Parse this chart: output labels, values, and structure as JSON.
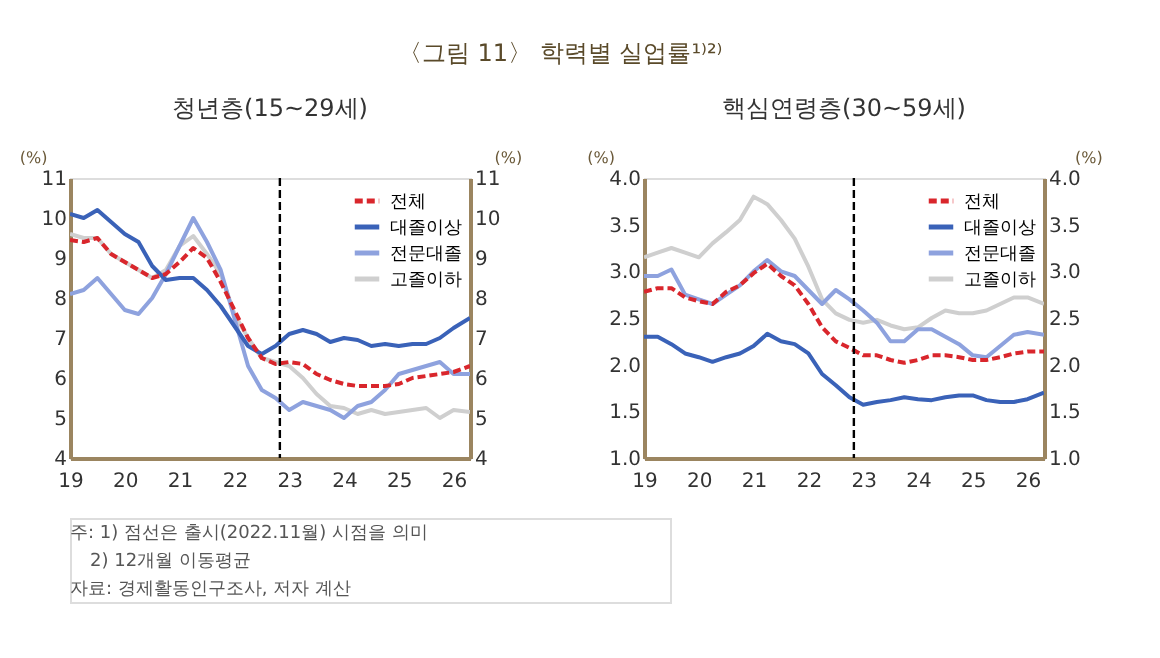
{
  "chart_data": [
    {
      "type": "line",
      "title": "〈그림 11〉 학력별 실업률¹⁾²⁾",
      "subtitle": "청년층(15~29세)",
      "ylabel": "(%)",
      "y2label": "(%)",
      "x": [
        19.0,
        19.25,
        19.5,
        19.75,
        20.0,
        20.25,
        20.5,
        20.75,
        21.0,
        21.25,
        21.5,
        21.75,
        22.0,
        22.25,
        22.5,
        22.75,
        23.0,
        23.25,
        23.5,
        23.75,
        24.0,
        24.25,
        24.5,
        24.75,
        25.0,
        25.25,
        25.5,
        25.75,
        26.0,
        26.3
      ],
      "series": [
        {
          "name": "전체",
          "color": "#d9262c",
          "line_style": "dashed",
          "values": [
            9.45,
            9.4,
            9.5,
            9.1,
            8.9,
            8.7,
            8.5,
            8.6,
            8.9,
            9.25,
            9.0,
            8.4,
            7.7,
            7.0,
            6.5,
            6.35,
            6.4,
            6.35,
            6.1,
            5.95,
            5.85,
            5.8,
            5.8,
            5.8,
            5.85,
            6.0,
            6.05,
            6.1,
            6.15,
            6.3
          ]
        },
        {
          "name": "대졸이상",
          "color": "#3a62b8",
          "values": [
            10.1,
            10.0,
            10.2,
            9.9,
            9.6,
            9.4,
            8.8,
            8.45,
            8.5,
            8.5,
            8.2,
            7.8,
            7.3,
            6.8,
            6.6,
            6.8,
            7.1,
            7.2,
            7.1,
            6.9,
            7.0,
            6.95,
            6.8,
            6.85,
            6.8,
            6.85,
            6.85,
            7.0,
            7.25,
            7.5
          ]
        },
        {
          "name": "전문대졸",
          "color": "#8ea2de",
          "values": [
            8.1,
            8.2,
            8.5,
            8.1,
            7.7,
            7.6,
            8.0,
            8.6,
            9.3,
            10.0,
            9.4,
            8.7,
            7.5,
            6.3,
            5.7,
            5.5,
            5.2,
            5.4,
            5.3,
            5.2,
            5.0,
            5.3,
            5.4,
            5.7,
            6.1,
            6.2,
            6.3,
            6.4,
            6.1,
            6.1
          ]
        },
        {
          "name": "고졸이하",
          "color": "#cfcfcf",
          "values": [
            9.6,
            9.5,
            9.5,
            9.1,
            8.9,
            8.7,
            8.5,
            8.7,
            9.3,
            9.55,
            9.1,
            8.6,
            7.6,
            7.0,
            6.5,
            6.4,
            6.3,
            6.0,
            5.6,
            5.3,
            5.25,
            5.1,
            5.2,
            5.1,
            5.15,
            5.2,
            5.25,
            5.0,
            5.2,
            5.15
          ]
        }
      ],
      "xlim": [
        19,
        26.3
      ],
      "xticks": [
        19,
        20,
        21,
        22,
        23,
        24,
        25,
        26
      ],
      "ylim": [
        4,
        11
      ],
      "yticks": [
        4,
        5,
        6,
        7,
        8,
        9,
        10,
        11
      ],
      "y2lim": [
        4,
        11
      ],
      "y2ticks": [
        4,
        5,
        6,
        7,
        8,
        9,
        10,
        11
      ],
      "ref_lines": [
        {
          "axis": "x",
          "value": 22.83,
          "color": "#000000",
          "line_style": "dashed"
        }
      ],
      "grid": false,
      "legend": "top right",
      "marker": "none",
      "annotations": [
        "주: 1) 점선은 출시(2022.11월) 시점을 의미",
        "2) 12개월 이동평균",
        "자료: 경제활동인구조사, 저자 계산"
      ]
    },
    {
      "type": "line",
      "title": "핵심연령층(30~59세)",
      "ylabel": "(%)",
      "y2label": "(%)",
      "x": [
        19.0,
        19.25,
        19.5,
        19.75,
        20.0,
        20.25,
        20.5,
        20.75,
        21.0,
        21.25,
        21.5,
        21.75,
        22.0,
        22.25,
        22.5,
        22.75,
        23.0,
        23.25,
        23.5,
        23.75,
        24.0,
        24.25,
        24.5,
        24.75,
        25.0,
        25.25,
        25.5,
        25.75,
        26.0,
        26.3
      ],
      "series": [
        {
          "name": "전체",
          "color": "#d9262c",
          "line_style": "dashed",
          "values": [
            2.78,
            2.82,
            2.82,
            2.72,
            2.68,
            2.65,
            2.78,
            2.85,
            2.98,
            3.08,
            2.95,
            2.85,
            2.65,
            2.4,
            2.25,
            2.18,
            2.1,
            2.1,
            2.05,
            2.02,
            2.05,
            2.1,
            2.1,
            2.08,
            2.05,
            2.05,
            2.08,
            2.12,
            2.14,
            2.14
          ]
        },
        {
          "name": "대졸이상",
          "color": "#3a62b8",
          "values": [
            2.3,
            2.3,
            2.22,
            2.12,
            2.08,
            2.03,
            2.08,
            2.12,
            2.2,
            2.33,
            2.25,
            2.22,
            2.12,
            1.9,
            1.78,
            1.65,
            1.57,
            1.6,
            1.62,
            1.65,
            1.63,
            1.62,
            1.65,
            1.67,
            1.67,
            1.62,
            1.6,
            1.6,
            1.63,
            1.7
          ]
        },
        {
          "name": "전문대졸",
          "color": "#8ea2de",
          "values": [
            2.95,
            2.95,
            3.02,
            2.75,
            2.7,
            2.65,
            2.75,
            2.85,
            3.0,
            3.12,
            3.0,
            2.95,
            2.8,
            2.65,
            2.8,
            2.7,
            2.58,
            2.45,
            2.25,
            2.25,
            2.38,
            2.38,
            2.3,
            2.22,
            2.1,
            2.08,
            2.2,
            2.32,
            2.35,
            2.32
          ]
        },
        {
          "name": "고졸이하",
          "color": "#cfcfcf",
          "values": [
            3.15,
            3.2,
            3.25,
            3.2,
            3.15,
            3.3,
            3.42,
            3.55,
            3.8,
            3.72,
            3.55,
            3.35,
            3.05,
            2.7,
            2.55,
            2.48,
            2.45,
            2.48,
            2.42,
            2.38,
            2.4,
            2.5,
            2.58,
            2.55,
            2.55,
            2.58,
            2.65,
            2.72,
            2.72,
            2.65
          ]
        }
      ],
      "xlim": [
        19,
        26.3
      ],
      "xticks": [
        19,
        20,
        21,
        22,
        23,
        24,
        25,
        26
      ],
      "ylim": [
        1.0,
        4.0
      ],
      "yticks": [
        {
          "value": 1,
          "label": "1.0"
        },
        {
          "value": 1.5,
          "label": "1.5"
        },
        {
          "value": 2,
          "label": "2.0"
        },
        {
          "value": 2.5,
          "label": "2.5"
        },
        {
          "value": 3,
          "label": "3.0"
        },
        {
          "value": 3.5,
          "label": "3.5"
        },
        {
          "value": 4,
          "label": "4.0"
        }
      ],
      "y2lim": [
        1.0,
        4.0
      ],
      "y2ticks": [
        {
          "value": 1,
          "label": "1.0"
        },
        {
          "value": 1.5,
          "label": "1.5"
        },
        {
          "value": 2,
          "label": "2.0"
        },
        {
          "value": 2.5,
          "label": "2.5"
        },
        {
          "value": 3,
          "label": "3.0"
        },
        {
          "value": 3.5,
          "label": "3.5"
        },
        {
          "value": 4,
          "label": "4.0"
        }
      ],
      "ref_lines": [
        {
          "axis": "x",
          "value": 22.83,
          "color": "#000000",
          "line_style": "dashed"
        }
      ],
      "grid": false,
      "legend": "top right",
      "marker": "none"
    }
  ]
}
